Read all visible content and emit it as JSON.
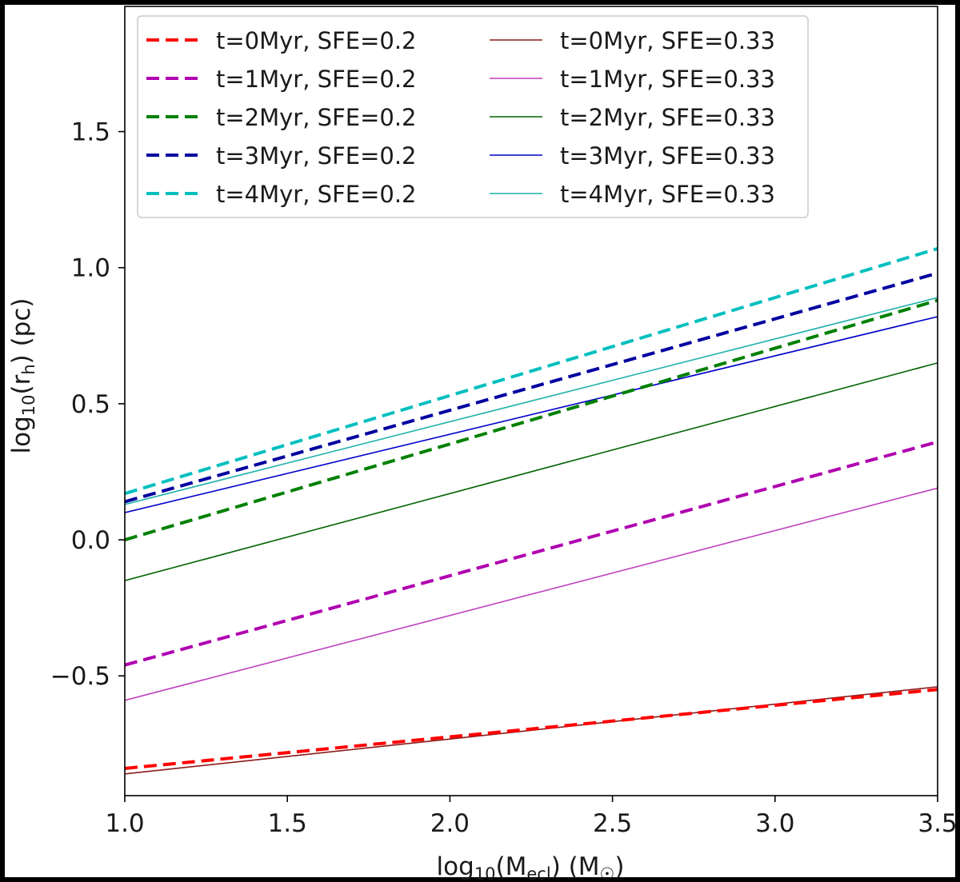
{
  "chart_data": {
    "type": "line",
    "title": "",
    "xlabel": "log₁₀(M_ecl) (M_☉)",
    "ylabel": "log₁₀(r_h) (pc)",
    "xlim": [
      1.0,
      3.5
    ],
    "ylim": [
      -0.94,
      1.96
    ],
    "x_ticks": [
      1.0,
      1.5,
      2.0,
      2.5,
      3.0,
      3.5
    ],
    "x_tick_labels": [
      "1.0",
      "1.5",
      "2.0",
      "2.5",
      "3.0",
      "3.5"
    ],
    "y_ticks": [
      -0.5,
      0.0,
      0.5,
      1.0,
      1.5
    ],
    "y_tick_labels": [
      "−0.5",
      "0.0",
      "0.5",
      "1.0",
      "1.5"
    ],
    "grid": false,
    "legend_position": "top-left",
    "series": [
      {
        "name": "t=0Myr, SFE=0.2",
        "style": "dashed",
        "color": "#ff0000",
        "x": [
          1.0,
          3.5
        ],
        "y": [
          -0.84,
          -0.55
        ]
      },
      {
        "name": "t=1Myr, SFE=0.2",
        "style": "dashed",
        "color": "#b000b0",
        "x": [
          1.0,
          3.5
        ],
        "y": [
          -0.46,
          0.36
        ]
      },
      {
        "name": "t=2Myr, SFE=0.2",
        "style": "dashed",
        "color": "#008000",
        "x": [
          1.0,
          3.5
        ],
        "y": [
          0.0,
          0.88
        ]
      },
      {
        "name": "t=3Myr, SFE=0.2",
        "style": "dashed",
        "color": "#0000a0",
        "x": [
          1.0,
          3.5
        ],
        "y": [
          0.14,
          0.98
        ]
      },
      {
        "name": "t=4Myr, SFE=0.2",
        "style": "dashed",
        "color": "#00bfbf",
        "x": [
          1.0,
          3.5
        ],
        "y": [
          0.17,
          1.07
        ]
      },
      {
        "name": "t=0Myr, SFE=0.33",
        "style": "solid",
        "color": "#8b1a1a",
        "x": [
          1.0,
          3.5
        ],
        "y": [
          -0.86,
          -0.54
        ]
      },
      {
        "name": "t=1Myr, SFE=0.33",
        "style": "solid",
        "color": "#bf40bf",
        "x": [
          1.0,
          3.5
        ],
        "y": [
          -0.59,
          0.19
        ]
      },
      {
        "name": "t=2Myr, SFE=0.33",
        "style": "solid",
        "color": "#006400",
        "x": [
          1.0,
          3.5
        ],
        "y": [
          -0.15,
          0.65
        ]
      },
      {
        "name": "t=3Myr, SFE=0.33",
        "style": "solid",
        "color": "#0000cd",
        "x": [
          1.0,
          3.5
        ],
        "y": [
          0.1,
          0.82
        ]
      },
      {
        "name": "t=4Myr, SFE=0.33",
        "style": "solid",
        "color": "#20b2aa",
        "x": [
          1.0,
          3.5
        ],
        "y": [
          0.13,
          0.89
        ]
      }
    ]
  }
}
